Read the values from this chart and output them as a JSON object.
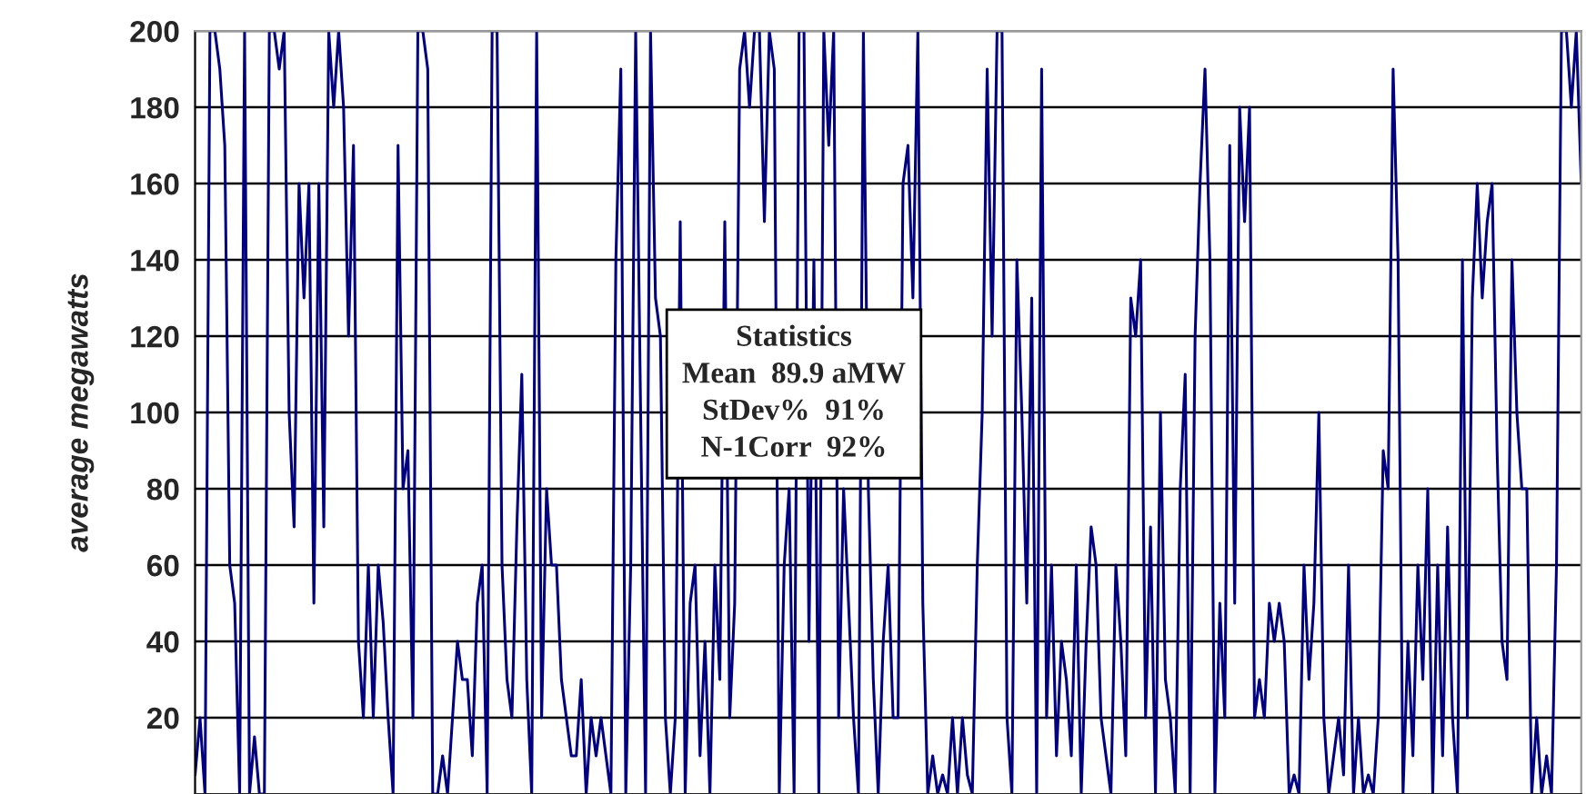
{
  "chart_data": {
    "type": "line",
    "ylabel": "average megawatts",
    "categories": [
      null,
      null,
      null,
      null,
      null,
      null,
      null,
      null,
      null,
      null,
      null,
      null,
      null,
      null,
      null,
      null,
      null,
      null,
      null,
      null,
      null,
      null,
      null,
      null,
      null,
      null,
      null,
      null,
      null,
      null,
      null,
      null,
      null,
      null,
      null,
      null,
      null,
      null,
      null,
      null,
      null,
      null,
      null,
      null,
      null,
      null,
      null,
      null,
      null,
      null,
      null,
      null,
      null,
      null,
      null,
      null,
      null,
      null,
      null,
      null,
      null,
      null,
      null,
      null,
      null,
      null,
      null,
      null,
      null,
      null,
      null,
      null,
      null,
      null,
      null,
      null,
      null,
      null,
      null,
      null,
      null,
      null,
      null,
      null,
      null,
      null,
      null,
      null,
      null,
      null,
      null,
      null,
      null,
      null,
      null,
      null,
      null,
      null,
      null,
      null,
      null,
      null,
      null,
      null,
      null,
      null,
      null,
      null,
      null,
      null,
      null,
      null,
      null,
      null,
      null,
      null,
      null,
      null,
      null,
      null,
      null,
      null,
      null,
      null,
      null,
      null,
      null,
      null,
      null,
      null,
      null,
      null,
      null,
      null,
      null,
      null,
      null,
      null,
      null,
      null,
      null,
      null,
      null,
      null,
      null,
      null,
      null,
      null,
      null,
      null,
      null,
      null,
      null,
      null,
      null,
      null,
      null,
      null,
      null,
      null,
      null,
      null,
      null,
      null,
      null,
      null,
      null,
      null,
      null,
      null,
      null,
      null,
      null,
      null,
      null,
      null,
      null,
      null,
      null,
      null,
      null,
      null,
      null,
      null,
      null,
      null,
      null,
      null,
      null,
      null,
      null,
      null,
      null,
      null,
      null,
      null,
      null,
      null,
      null,
      null,
      null,
      null,
      null,
      null,
      null,
      null,
      null,
      null,
      null,
      null,
      null,
      null,
      null,
      null,
      null,
      null,
      null,
      null,
      null,
      null,
      null,
      null,
      null,
      null,
      null,
      null,
      null,
      null,
      null,
      null,
      null,
      null,
      null,
      null,
      null,
      null,
      null,
      null,
      null,
      null,
      null,
      null,
      null,
      null,
      null,
      null,
      null,
      null,
      null,
      null,
      null,
      null,
      null,
      null,
      null,
      null,
      null,
      null,
      null,
      null,
      null,
      null,
      null,
      null,
      null,
      null,
      null,
      null,
      null,
      null,
      null,
      null,
      null,
      null,
      null,
      null,
      null,
      null,
      null,
      null,
      null
    ],
    "series": [
      {
        "color": "#000080",
        "values": [
          5,
          20,
          0,
          200,
          200,
          190,
          170,
          60,
          50,
          0,
          200,
          0,
          15,
          0,
          0,
          200,
          200,
          190,
          200,
          100,
          70,
          160,
          130,
          160,
          50,
          160,
          70,
          200,
          180,
          200,
          180,
          120,
          170,
          40,
          20,
          60,
          20,
          60,
          45,
          20,
          0,
          170,
          80,
          90,
          20,
          200,
          200,
          190,
          0,
          0,
          10,
          0,
          20,
          40,
          30,
          30,
          10,
          50,
          60,
          0,
          200,
          200,
          60,
          30,
          20,
          70,
          110,
          30,
          0,
          200,
          20,
          80,
          60,
          60,
          30,
          20,
          10,
          10,
          30,
          0,
          20,
          10,
          20,
          10,
          0,
          140,
          190,
          0,
          60,
          200,
          100,
          0,
          200,
          130,
          120,
          20,
          0,
          20,
          150,
          0,
          50,
          60,
          10,
          40,
          0,
          60,
          30,
          150,
          20,
          50,
          190,
          200,
          180,
          200,
          200,
          150,
          200,
          190,
          0,
          60,
          80,
          0,
          200,
          200,
          40,
          140,
          0,
          200,
          170,
          200,
          20,
          80,
          50,
          20,
          0,
          200,
          80,
          30,
          0,
          40,
          60,
          20,
          20,
          160,
          170,
          130,
          200,
          50,
          0,
          10,
          0,
          5,
          0,
          20,
          0,
          20,
          5,
          0,
          60,
          100,
          190,
          120,
          200,
          200,
          20,
          0,
          140,
          100,
          50,
          130,
          0,
          190,
          20,
          60,
          10,
          40,
          30,
          10,
          60,
          0,
          40,
          70,
          60,
          20,
          10,
          0,
          60,
          40,
          10,
          130,
          120,
          140,
          20,
          70,
          0,
          100,
          30,
          20,
          0,
          80,
          110,
          0,
          120,
          160,
          190,
          140,
          0,
          50,
          20,
          170,
          50,
          180,
          150,
          180,
          20,
          30,
          20,
          50,
          40,
          50,
          40,
          0,
          5,
          0,
          60,
          30,
          50,
          100,
          20,
          0,
          10,
          20,
          5,
          60,
          0,
          20,
          0,
          5,
          0,
          20,
          90,
          80,
          190,
          140,
          0,
          40,
          10,
          60,
          30,
          80,
          0,
          60,
          10,
          70,
          20,
          0,
          140,
          20,
          130,
          160,
          130,
          150,
          160,
          90,
          40,
          30,
          140,
          100,
          80,
          80,
          0,
          20,
          0,
          10,
          0,
          60,
          200,
          200,
          180,
          200,
          160
        ]
      }
    ],
    "ylim": [
      0,
      200
    ],
    "yticks": [
      20,
      40,
      60,
      80,
      100,
      120,
      140,
      160,
      180,
      200
    ],
    "grid": "y",
    "tick_labels": "y",
    "line_style": "solid",
    "marker": "none",
    "annotations": [
      "Statistics",
      "Mean  89.9 aMW",
      "StDev%  91%",
      "N-1Corr  92%"
    ]
  }
}
